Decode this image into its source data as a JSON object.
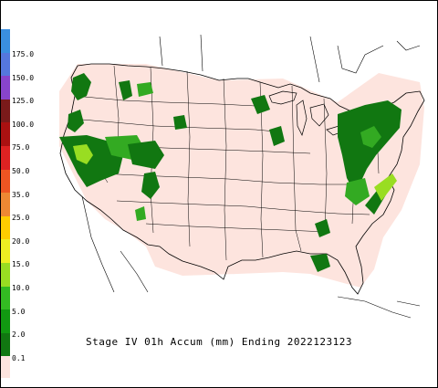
{
  "title": "Stage IV 01h Accum (mm) Ending 2022123123",
  "legend": {
    "bins": [
      {
        "label": "175.0",
        "color": "#3a8fe0"
      },
      {
        "label": "150.0",
        "color": "#5577dd"
      },
      {
        "label": "125.0",
        "color": "#8844cc"
      },
      {
        "label": "100.0",
        "color": "#7a1a1a"
      },
      {
        "label": "75.0",
        "color": "#aa1111"
      },
      {
        "label": "50.0",
        "color": "#dd2222"
      },
      {
        "label": "35.0",
        "color": "#ee5522"
      },
      {
        "label": "25.0",
        "color": "#ee8833"
      },
      {
        "label": "20.0",
        "color": "#ffcc00"
      },
      {
        "label": "15.0",
        "color": "#eeee22"
      },
      {
        "label": "10.0",
        "color": "#99dd22"
      },
      {
        "label": "5.0",
        "color": "#33bb22"
      },
      {
        "label": "2.0",
        "color": "#119911"
      },
      {
        "label": "0.1",
        "color": "#117711"
      }
    ],
    "base_color": "#fde4de"
  },
  "map": {
    "background_color": "#fde4de",
    "border_color": "#000000",
    "precip_colors": {
      "light": "#117711",
      "moderate": "#33aa22",
      "heavy": "#99dd22"
    }
  }
}
